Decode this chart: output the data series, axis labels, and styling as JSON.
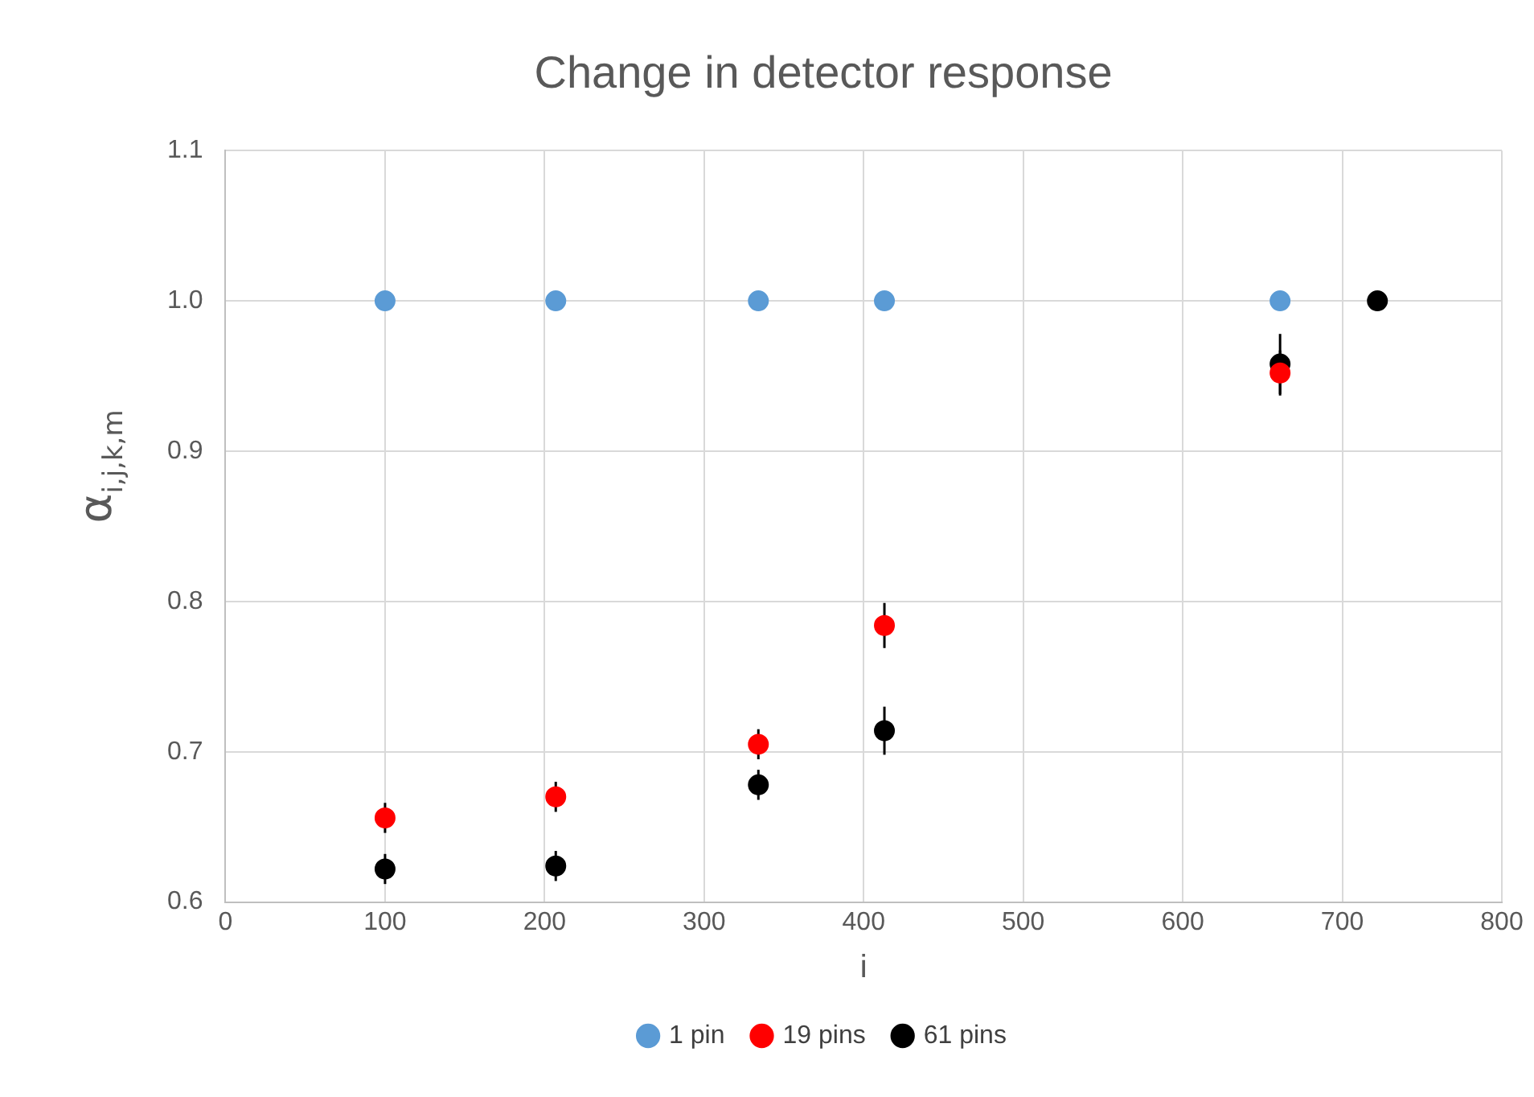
{
  "chart_data": {
    "type": "scatter",
    "title": "Change in detector response",
    "xlabel": "i",
    "ylabel": "α$_{i,j,k,m}$",
    "xlim": [
      0,
      800
    ],
    "xticks": [
      0,
      100,
      200,
      300,
      400,
      500,
      600,
      700,
      800
    ],
    "ylim": [
      0.6,
      1.1
    ],
    "yticks": [
      {
        "value": 0.6,
        "label": "0.6"
      },
      {
        "value": 0.7,
        "label": "0.7"
      },
      {
        "value": 0.8,
        "label": "0.8"
      },
      {
        "value": 0.9,
        "label": "0.9"
      },
      {
        "value": 1.0,
        "label": "1.0"
      },
      {
        "value": 1.1,
        "label": "1.1"
      }
    ],
    "grid": true,
    "legend": "bottom",
    "marker": "circle",
    "series": [
      {
        "name": "1 pin",
        "color": "#5b9bd5",
        "x": [
          100,
          207,
          334,
          413,
          661
        ],
        "values": [
          1.0,
          1.0,
          1.0,
          1.0,
          1.0
        ]
      },
      {
        "name": "19 pins",
        "color": "#ff0000",
        "x": [
          100,
          207,
          334,
          413,
          661
        ],
        "values": [
          0.656,
          0.67,
          0.705,
          0.784,
          0.952
        ],
        "errors": [
          0.01,
          0.01,
          0.01,
          0.015,
          0.015
        ]
      },
      {
        "name": "61 pins",
        "color": "#000000",
        "x": [
          100,
          207,
          334,
          413,
          661,
          722
        ],
        "values": [
          0.622,
          0.624,
          0.678,
          0.714,
          0.958,
          1.0
        ],
        "errors": [
          0.01,
          0.01,
          0.01,
          0.016,
          0.02,
          null
        ]
      }
    ]
  }
}
